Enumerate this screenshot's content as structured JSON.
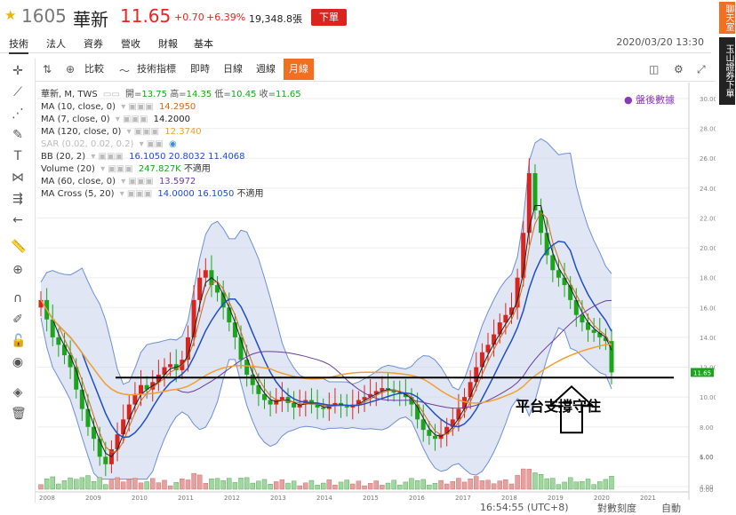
{
  "header": {
    "code": "1605",
    "name": "華新",
    "price": "11.65",
    "change": "+0.70",
    "change_pct": "+6.39%",
    "volume": "19,348.8張",
    "order_button": "下單"
  },
  "subnav": {
    "tabs": [
      "技術",
      "法人",
      "資券",
      "營收",
      "財報",
      "基本"
    ],
    "datetime": "2020/03/20 13:30"
  },
  "side_buttons": [
    "聊天室",
    "玉山證券下單"
  ],
  "toolbar": {
    "compare": "比較",
    "indicators": "技術指標",
    "periods": [
      "即時",
      "日線",
      "週線",
      "月線"
    ],
    "active_period": "月線"
  },
  "legend": {
    "line1": {
      "name": "華新, M, TWS",
      "open_lbl": "開=",
      "open": "13.75",
      "high_lbl": "高=",
      "high": "14.35",
      "low_lbl": "低=",
      "low": "10.45",
      "close_lbl": "收=",
      "close": "11.65"
    },
    "ma10": {
      "name": "MA (10, close, 0)",
      "value": "14.2950",
      "color": "#d2691e"
    },
    "ma7": {
      "name": "MA (7, close, 0)",
      "value": "14.2000",
      "color": "#222222"
    },
    "ma120": {
      "name": "MA (120, close, 0)",
      "value": "12.3740",
      "color": "#f0a030"
    },
    "sar": {
      "name": "SAR (0.02, 0.02, 0.2)"
    },
    "bb": {
      "name": "BB (20, 2)",
      "v1": "16.1050",
      "v2": "20.8032",
      "v3": "11.4068",
      "color": "#1e4fc6"
    },
    "volume": {
      "name": "Volume (20)",
      "value": "247.827K",
      "note": "不適用",
      "color": "#1aa51a"
    },
    "ma60": {
      "name": "MA (60, close, 0)",
      "value": "13.5972",
      "color": "#6a3c9c"
    },
    "macross": {
      "name": "MA Cross (5, 20)",
      "v1": "14.0000",
      "v2": "16.1050",
      "note": "不適用",
      "color": "#1e4fc6"
    }
  },
  "post_market": "盤後數據",
  "annotation": "平台支撐守住",
  "chart_data": {
    "type": "candlestick",
    "price_axis": {
      "min": 4.0,
      "max": 30.0,
      "ticks": [
        "30.00",
        "28.00",
        "26.00",
        "24.00",
        "22.00",
        "20.00",
        "18.00",
        "16.00",
        "14.00",
        "12.00",
        "10.00",
        "8.00",
        "6.00",
        "4.00"
      ],
      "last_label": "11.65"
    },
    "volume_axis": {
      "ticks": [
        "1.00",
        "0.00"
      ]
    },
    "x_labels": [
      "2008",
      "2009",
      "2010",
      "2011",
      "2012",
      "2013",
      "2014",
      "2015",
      "2016",
      "2017",
      "2018",
      "2019",
      "2020",
      "2021"
    ],
    "closes": [
      16.5,
      15.2,
      14.0,
      13.5,
      12.8,
      12.0,
      10.5,
      9.2,
      8.0,
      7.2,
      6.0,
      5.5,
      6.5,
      7.5,
      8.5,
      9.5,
      10.2,
      10.8,
      10.5,
      11.0,
      11.5,
      12.0,
      12.2,
      11.8,
      12.5,
      14.0,
      16.5,
      18.0,
      18.5,
      17.5,
      17.0,
      16.0,
      15.0,
      14.0,
      12.5,
      11.5,
      10.8,
      10.2,
      9.8,
      9.5,
      9.8,
      10.0,
      9.6,
      9.3,
      9.5,
      9.8,
      9.5,
      9.3,
      9.2,
      9.5,
      9.6,
      9.4,
      9.3,
      9.5,
      9.8,
      10.0,
      10.2,
      10.4,
      10.6,
      10.5,
      10.3,
      10.2,
      10.0,
      9.5,
      8.5,
      7.8,
      7.4,
      7.2,
      7.5,
      8.0,
      8.5,
      9.2,
      10.0,
      11.0,
      12.0,
      13.0,
      13.5,
      14.2,
      15.0,
      15.5,
      16.0,
      18.0,
      21.0,
      25.0,
      22.5,
      21.0,
      19.5,
      18.5,
      18.0,
      17.5,
      16.5,
      15.5,
      15.0,
      14.5,
      14.3,
      14.0,
      13.75,
      11.65
    ],
    "ma_values": {
      "ma7": "14.2000",
      "ma10": "14.2950",
      "ma60": "13.5972",
      "ma120": "12.3740"
    },
    "support_level": 11.3,
    "bottom_bar": {
      "time": "16:54:55 (UTC+8)",
      "scale": "對數刻度",
      "auto": "自動"
    }
  }
}
